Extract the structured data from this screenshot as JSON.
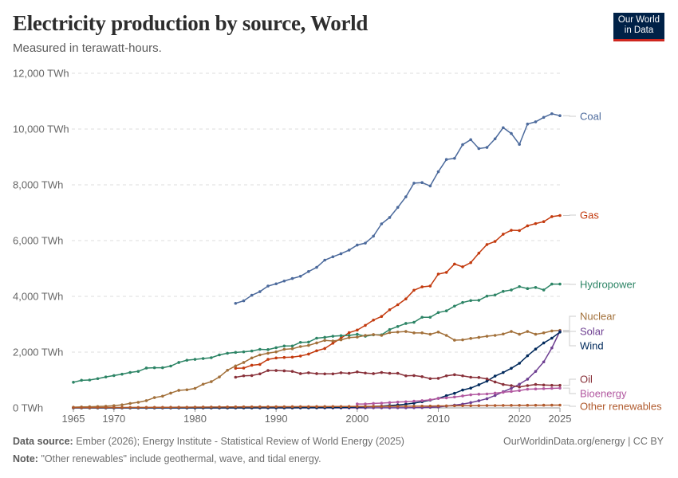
{
  "header": {
    "title": "Electricity production by source, World",
    "subtitle": "Measured in terawatt-hours.",
    "logo": "Our World in Data"
  },
  "footer": {
    "source_label": "Data source:",
    "source": "Ember (2026); Energy Institute - Statistical Review of World Energy (2025)",
    "note_label": "Note:",
    "note": "\"Other renewables\" include geothermal, wave, and tidal energy.",
    "url": "OurWorldinData.org/energy | CC BY"
  },
  "chart_data": {
    "type": "line",
    "title": "Electricity production by source, World",
    "xlim": [
      1965,
      2025
    ],
    "ylim": [
      0,
      12000
    ],
    "x_ticks": [
      1965,
      1970,
      1980,
      1990,
      2000,
      2010,
      2020,
      2025
    ],
    "y_ticks": [
      0,
      2000,
      4000,
      6000,
      8000,
      10000,
      12000
    ],
    "y_tick_labels": [
      "0 TWh",
      "2,000 TWh",
      "4,000 TWh",
      "6,000 TWh",
      "8,000 TWh",
      "10,000 TWh",
      "12,000 TWh"
    ],
    "grid": "horizontal dashed",
    "legend": "right (line-end labels)",
    "series": [
      {
        "name": "Coal",
        "color": "#4c6a9c",
        "start": 1985,
        "values": [
          3750,
          3840,
          4040,
          4170,
          4370,
          4450,
          4550,
          4640,
          4720,
          4890,
          5040,
          5300,
          5420,
          5530,
          5660,
          5840,
          5910,
          6160,
          6600,
          6830,
          7190,
          7570,
          8060,
          8080,
          7960,
          8470,
          8910,
          8950,
          9440,
          9620,
          9300,
          9340,
          9650,
          10050,
          9840,
          9450,
          10180,
          10260,
          10420,
          10550,
          10480
        ]
      },
      {
        "name": "Gas",
        "color": "#c33a0e",
        "start": 1985,
        "values": [
          1420,
          1430,
          1530,
          1560,
          1740,
          1790,
          1810,
          1820,
          1860,
          1930,
          2050,
          2130,
          2320,
          2500,
          2700,
          2790,
          2960,
          3150,
          3280,
          3520,
          3700,
          3910,
          4220,
          4340,
          4370,
          4800,
          4860,
          5160,
          5060,
          5210,
          5550,
          5860,
          5970,
          6230,
          6370,
          6360,
          6530,
          6610,
          6680,
          6860,
          6900
        ]
      },
      {
        "name": "Hydropower",
        "color": "#2c8465",
        "start": 1965,
        "values": [
          920,
          990,
          1000,
          1050,
          1110,
          1160,
          1210,
          1270,
          1310,
          1430,
          1440,
          1440,
          1500,
          1630,
          1710,
          1740,
          1770,
          1800,
          1900,
          1960,
          1990,
          2010,
          2040,
          2100,
          2090,
          2160,
          2220,
          2220,
          2350,
          2360,
          2500,
          2530,
          2570,
          2590,
          2600,
          2640,
          2570,
          2620,
          2620,
          2810,
          2920,
          3030,
          3070,
          3250,
          3250,
          3420,
          3480,
          3650,
          3780,
          3850,
          3860,
          4010,
          4050,
          4180,
          4230,
          4350,
          4280,
          4320,
          4230,
          4440,
          4440
        ]
      },
      {
        "name": "Nuclear",
        "color": "#a2703a",
        "start": 1965,
        "values": [
          25,
          35,
          40,
          50,
          60,
          80,
          110,
          160,
          200,
          260,
          370,
          420,
          530,
          630,
          650,
          700,
          850,
          940,
          1110,
          1350,
          1505,
          1630,
          1790,
          1900,
          1960,
          2010,
          2100,
          2120,
          2200,
          2240,
          2330,
          2420,
          2400,
          2440,
          2520,
          2540,
          2600,
          2630,
          2600,
          2700,
          2720,
          2740,
          2690,
          2690,
          2640,
          2720,
          2600,
          2430,
          2440,
          2490,
          2530,
          2570,
          2600,
          2650,
          2740,
          2640,
          2740,
          2640,
          2690,
          2760,
          2780
        ]
      },
      {
        "name": "Solar",
        "color": "#6d3e91",
        "start": 1965,
        "values": [
          0,
          0,
          0,
          0,
          0,
          0,
          0,
          0,
          0,
          0,
          0,
          0,
          0,
          0,
          0,
          0,
          0,
          0,
          0,
          0,
          0,
          0,
          0,
          0,
          0,
          0,
          0,
          0,
          0,
          0,
          0,
          0,
          0,
          0,
          0,
          1,
          1,
          2,
          2,
          3,
          4,
          5,
          7,
          12,
          20,
          32,
          64,
          100,
          135,
          190,
          256,
          330,
          445,
          580,
          700,
          850,
          1030,
          1310,
          1650,
          2150,
          2750
        ]
      },
      {
        "name": "Wind",
        "color": "#00295b",
        "start": 1965,
        "values": [
          0,
          0,
          0,
          0,
          0,
          0,
          0,
          0,
          0,
          0,
          0,
          0,
          0,
          0,
          0,
          0,
          0,
          0,
          0,
          0,
          0,
          1,
          1,
          2,
          3,
          4,
          5,
          5,
          6,
          7,
          8,
          10,
          12,
          16,
          21,
          31,
          38,
          52,
          63,
          85,
          104,
          133,
          171,
          220,
          277,
          342,
          437,
          523,
          640,
          710,
          830,
          960,
          1140,
          1270,
          1420,
          1600,
          1870,
          2110,
          2330,
          2500,
          2720
        ]
      },
      {
        "name": "Oil",
        "color": "#883039",
        "start": 1985,
        "values": [
          1100,
          1150,
          1160,
          1220,
          1340,
          1340,
          1330,
          1310,
          1230,
          1260,
          1230,
          1220,
          1220,
          1260,
          1240,
          1290,
          1250,
          1230,
          1270,
          1240,
          1240,
          1150,
          1160,
          1120,
          1050,
          1060,
          1150,
          1190,
          1150,
          1100,
          1090,
          1040,
          930,
          840,
          800,
          750,
          800,
          840,
          820,
          810,
          810
        ]
      },
      {
        "name": "Bioenergy",
        "color": "#b258a0",
        "start": 2000,
        "values": [
          140,
          140,
          160,
          170,
          190,
          210,
          220,
          240,
          260,
          290,
          340,
          360,
          390,
          430,
          470,
          490,
          500,
          530,
          560,
          590,
          620,
          670,
          680,
          690,
          700,
          710
        ]
      },
      {
        "name": "Other renewables",
        "color": "#b05a2d",
        "start": 1965,
        "values": [
          10,
          11,
          12,
          13,
          14,
          15,
          16,
          17,
          18,
          19,
          20,
          21,
          22,
          24,
          25,
          27,
          29,
          31,
          33,
          35,
          37,
          38,
          39,
          40,
          41,
          42,
          43,
          44,
          45,
          46,
          47,
          48,
          49,
          50,
          51,
          52,
          53,
          54,
          55,
          57,
          58,
          60,
          62,
          64,
          66,
          70,
          72,
          75,
          78,
          80,
          82,
          84,
          86,
          88,
          90,
          92,
          94,
          96,
          97,
          99,
          100
        ]
      }
    ]
  }
}
